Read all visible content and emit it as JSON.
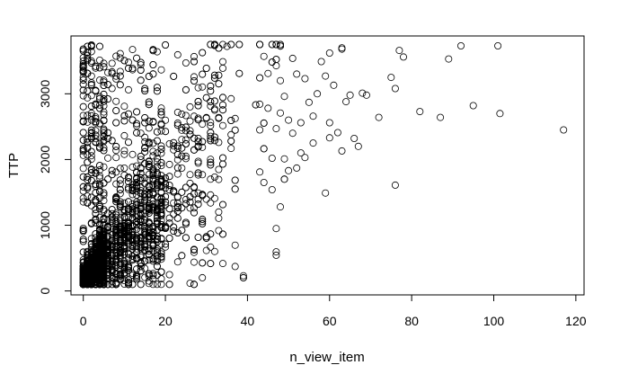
{
  "chart_data": {
    "type": "scatter",
    "title": "",
    "xlabel": "n_view_item",
    "ylabel": "TTP",
    "xlim": [
      -3,
      122
    ],
    "ylim": [
      -60,
      3880
    ],
    "xticks": [
      0,
      20,
      40,
      60,
      80,
      100,
      120
    ],
    "yticks": [
      0,
      1000,
      2000,
      3000
    ],
    "grid": false,
    "marker": "open-circle",
    "colors": {
      "marker": "#000000",
      "axes": "#000000",
      "background": "#ffffff"
    },
    "cloud": {
      "description": "dense cloud of points for n_view_item 0-50, TTP 100-3750",
      "count": 3400,
      "x_range": [
        0,
        50
      ],
      "y_range": [
        100,
        3750
      ]
    },
    "points": [
      [
        117,
        2450
      ],
      [
        101,
        3730
      ],
      [
        101.5,
        2700
      ],
      [
        95,
        2820
      ],
      [
        92,
        3730
      ],
      [
        89,
        3530
      ],
      [
        87,
        2640
      ],
      [
        82,
        2730
      ],
      [
        78,
        3560
      ],
      [
        77,
        3660
      ],
      [
        76,
        1610
      ],
      [
        76,
        3080
      ],
      [
        75,
        3250
      ],
      [
        72,
        2640
      ],
      [
        69,
        2980
      ],
      [
        68,
        3010
      ],
      [
        67,
        2200
      ],
      [
        66,
        2320
      ],
      [
        65,
        2980
      ],
      [
        64,
        2880
      ],
      [
        63,
        3680
      ],
      [
        63,
        3700
      ],
      [
        63,
        2130
      ],
      [
        62,
        2410
      ],
      [
        61,
        3130
      ],
      [
        60,
        2330
      ],
      [
        60,
        2560
      ],
      [
        60,
        3620
      ],
      [
        59,
        1490
      ],
      [
        59,
        3270
      ],
      [
        58,
        3490
      ],
      [
        57,
        3000
      ],
      [
        56,
        2250
      ],
      [
        56,
        2660
      ],
      [
        55,
        2870
      ],
      [
        54,
        2030
      ],
      [
        54,
        3230
      ],
      [
        53,
        2560
      ],
      [
        53,
        2100
      ],
      [
        52,
        3300
      ],
      [
        52,
        1870
      ],
      [
        51,
        2400
      ],
      [
        51,
        3540
      ],
      [
        50,
        1830
      ],
      [
        50,
        2600
      ],
      [
        49,
        2010
      ],
      [
        49,
        2960
      ],
      [
        48,
        1280
      ],
      [
        48,
        3200
      ],
      [
        47,
        2470
      ],
      [
        47,
        950
      ],
      [
        46,
        2020
      ],
      [
        46,
        1540
      ],
      [
        45,
        3310
      ],
      [
        45,
        2780
      ],
      [
        44,
        1650
      ],
      [
        44,
        3570
      ],
      [
        43,
        2450
      ],
      [
        43,
        1810
      ]
    ]
  }
}
